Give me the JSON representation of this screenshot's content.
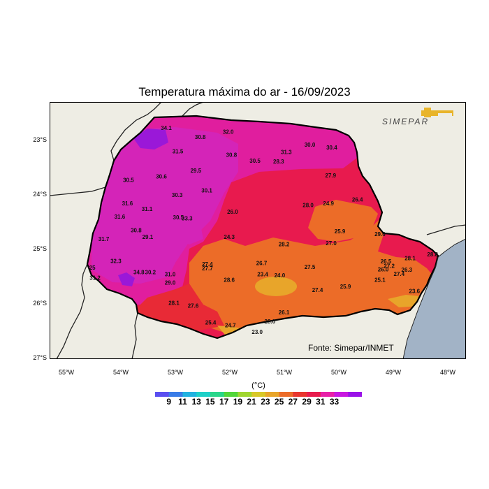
{
  "title": "Temperatura máxima do ar - 16/09/2023",
  "logo_text": "SIMEPAR",
  "source": "Fonte: Simepar/INMET",
  "colorbar": {
    "unit": "(°C)",
    "labels": [
      "9",
      "11",
      "13",
      "15",
      "17",
      "19",
      "21",
      "23",
      "25",
      "27",
      "29",
      "31",
      "33"
    ],
    "colors": [
      "#5a4ff0",
      "#3a7de8",
      "#22b2e0",
      "#1fd0c8",
      "#2ad68a",
      "#52d63a",
      "#a0d630",
      "#d8c828",
      "#e8a52a",
      "#ec6c28",
      "#e8362e",
      "#e81c4e",
      "#e820a8",
      "#c818e0",
      "#9a12e8"
    ]
  },
  "y_labels": [
    "23°S",
    "24°S",
    "25°S",
    "26°S",
    "27°S"
  ],
  "x_labels": [
    "55°W",
    "54°W",
    "53°W",
    "52°W",
    "51°W",
    "50°W",
    "49°W",
    "48°W"
  ],
  "stations": [
    {
      "t": "34.1",
      "lon": -53.17,
      "lat": -22.9
    },
    {
      "t": "32.0",
      "lon": -52.04,
      "lat": -22.97
    },
    {
      "t": "30.8",
      "lon": -52.55,
      "lat": -23.06
    },
    {
      "t": "31.5",
      "lon": -52.96,
      "lat": -23.32
    },
    {
      "t": "30.8",
      "lon": -51.98,
      "lat": -23.38
    },
    {
      "t": "30.5",
      "lon": -51.55,
      "lat": -23.49
    },
    {
      "t": "28.3",
      "lon": -51.12,
      "lat": -23.5
    },
    {
      "t": "30.0",
      "lon": -50.55,
      "lat": -23.2
    },
    {
      "t": "30.4",
      "lon": -50.15,
      "lat": -23.25
    },
    {
      "t": "31.3",
      "lon": -50.98,
      "lat": -23.33
    },
    {
      "t": "30.5",
      "lon": -53.86,
      "lat": -23.83
    },
    {
      "t": "30.6",
      "lon": -53.26,
      "lat": -23.77
    },
    {
      "t": "29.5",
      "lon": -52.63,
      "lat": -23.66
    },
    {
      "t": "27.9",
      "lon": -50.17,
      "lat": -23.75
    },
    {
      "t": "30.3",
      "lon": -52.97,
      "lat": -24.1
    },
    {
      "t": "30.1",
      "lon": -52.43,
      "lat": -24.02
    },
    {
      "t": "31.6",
      "lon": -53.88,
      "lat": -24.25
    },
    {
      "t": "31.1",
      "lon": -53.52,
      "lat": -24.35
    },
    {
      "t": "28.0",
      "lon": -50.58,
      "lat": -24.28
    },
    {
      "t": "24.9",
      "lon": -50.21,
      "lat": -24.25
    },
    {
      "t": "26.4",
      "lon": -49.68,
      "lat": -24.18
    },
    {
      "t": "26.0",
      "lon": -51.96,
      "lat": -24.4
    },
    {
      "t": "31.6",
      "lon": -54.02,
      "lat": -24.49
    },
    {
      "t": "30.5",
      "lon": -52.95,
      "lat": -24.5
    },
    {
      "t": "33.3",
      "lon": -52.79,
      "lat": -24.52
    },
    {
      "t": "30.8",
      "lon": -53.72,
      "lat": -24.73
    },
    {
      "t": "29.1",
      "lon": -53.51,
      "lat": -24.85
    },
    {
      "t": "25.9",
      "lon": -50.0,
      "lat": -24.75
    },
    {
      "t": "29.6",
      "lon": -49.27,
      "lat": -24.8
    },
    {
      "t": "31.7",
      "lon": -54.31,
      "lat": -24.89
    },
    {
      "t": "24.3",
      "lon": -52.02,
      "lat": -24.85
    },
    {
      "t": "28.2",
      "lon": -51.02,
      "lat": -24.98
    },
    {
      "t": "27.0",
      "lon": -50.16,
      "lat": -24.96
    },
    {
      "t": "32.3",
      "lon": -54.09,
      "lat": -25.28
    },
    {
      "t": "27.4",
      "lon": -52.42,
      "lat": -25.34
    },
    {
      "t": "27.7",
      "lon": -52.42,
      "lat": -25.41
    },
    {
      "t": "26.7",
      "lon": -51.43,
      "lat": -25.32
    },
    {
      "t": "27.5",
      "lon": -50.55,
      "lat": -25.39
    },
    {
      "t": "26.5",
      "lon": -49.16,
      "lat": -25.29
    },
    {
      "t": "28.1",
      "lon": -48.72,
      "lat": -25.23
    },
    {
      "t": "28.8",
      "lon": -48.31,
      "lat": -25.16
    },
    {
      "t": "25",
      "lon": -54.52,
      "lat": -25.4
    },
    {
      "t": "34.8",
      "lon": -53.67,
      "lat": -25.48
    },
    {
      "t": "30.2",
      "lon": -53.46,
      "lat": -25.48
    },
    {
      "t": "31.0",
      "lon": -53.1,
      "lat": -25.52
    },
    {
      "t": "26.0",
      "lon": -49.21,
      "lat": -25.43
    },
    {
      "t": "27.2",
      "lon": -49.1,
      "lat": -25.37
    },
    {
      "t": "26.3",
      "lon": -48.78,
      "lat": -25.44
    },
    {
      "t": "27.4",
      "lon": -48.92,
      "lat": -25.51
    },
    {
      "t": "31.2",
      "lon": -54.47,
      "lat": -25.58
    },
    {
      "t": "23.4",
      "lon": -51.41,
      "lat": -25.52
    },
    {
      "t": "24.0",
      "lon": -51.1,
      "lat": -25.54
    },
    {
      "t": "28.6",
      "lon": -52.02,
      "lat": -25.62
    },
    {
      "t": "29.0",
      "lon": -53.1,
      "lat": -25.67
    },
    {
      "t": "25.9",
      "lon": -49.9,
      "lat": -25.74
    },
    {
      "t": "25.1",
      "lon": -49.27,
      "lat": -25.62
    },
    {
      "t": "27.4",
      "lon": -50.41,
      "lat": -25.8
    },
    {
      "t": "23.6",
      "lon": -48.64,
      "lat": -25.82
    },
    {
      "t": "28.1",
      "lon": -53.03,
      "lat": -26.03
    },
    {
      "t": "27.6",
      "lon": -52.68,
      "lat": -26.08
    },
    {
      "t": "26.1",
      "lon": -51.02,
      "lat": -26.2
    },
    {
      "t": "25.4",
      "lon": -52.36,
      "lat": -26.38
    },
    {
      "t": "24.7",
      "lon": -52.0,
      "lat": -26.43
    },
    {
      "t": "28.0",
      "lon": -51.28,
      "lat": -26.36
    },
    {
      "t": "23.0",
      "lon": -51.51,
      "lat": -26.55
    }
  ]
}
